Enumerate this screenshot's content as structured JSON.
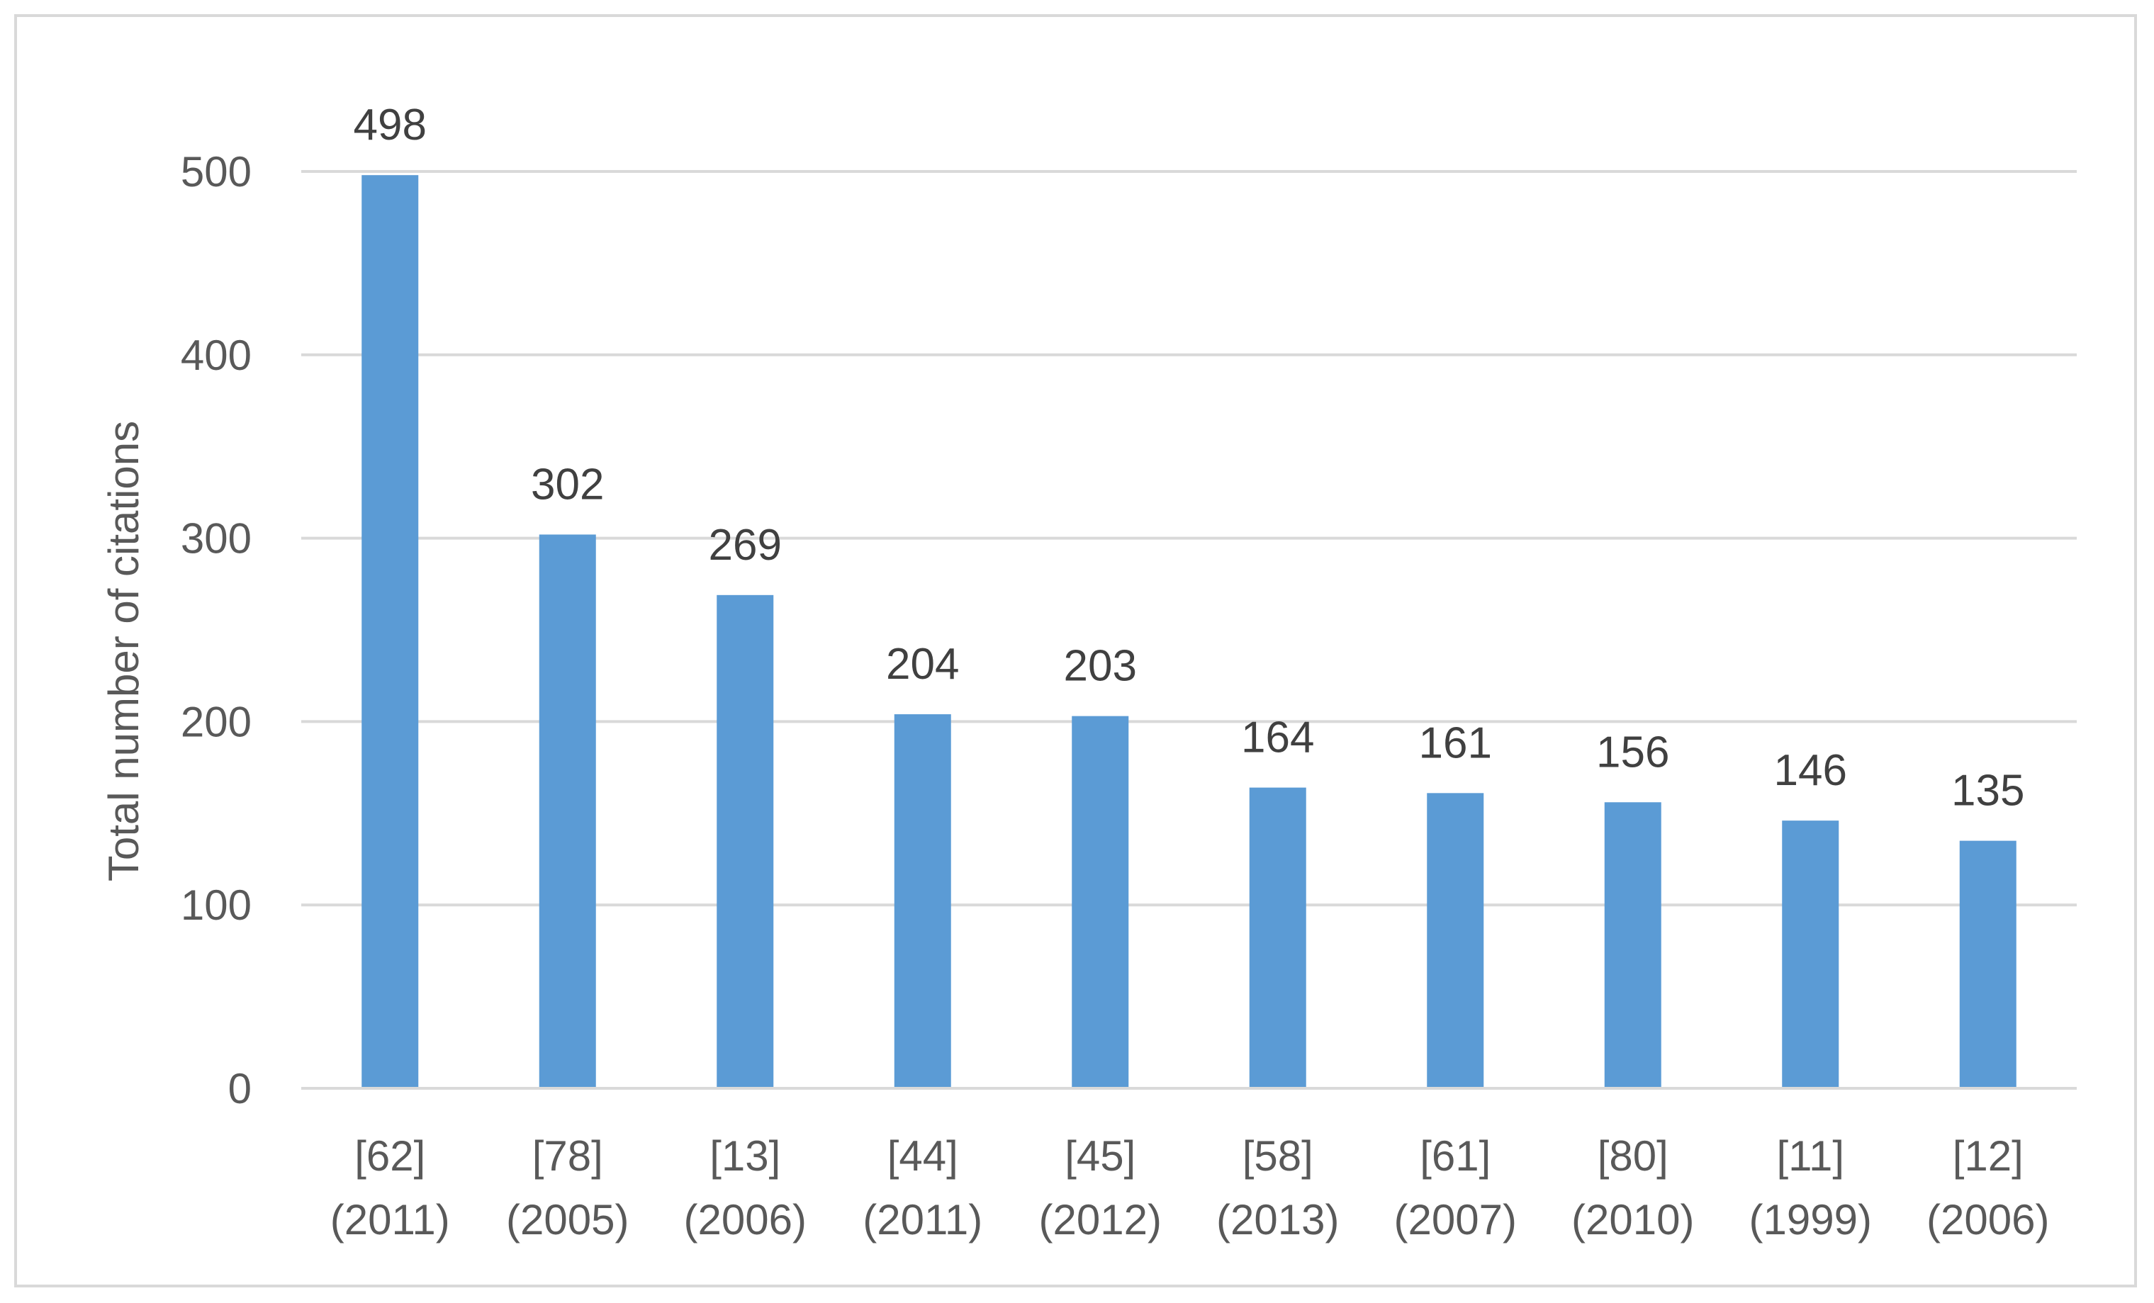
{
  "chart_data": {
    "type": "bar",
    "title": "",
    "xlabel": "",
    "ylabel": "Total number of citations",
    "ylim": [
      0,
      500
    ],
    "y_ticks": [
      0,
      100,
      200,
      300,
      400,
      500
    ],
    "grid": true,
    "legend": "none",
    "bar_color": "#5B9BD5",
    "categories": [
      {
        "ref": "[62]",
        "year": "(2011)"
      },
      {
        "ref": "[78]",
        "year": "(2005)"
      },
      {
        "ref": "[13]",
        "year": "(2006)"
      },
      {
        "ref": "[44]",
        "year": "(2011)"
      },
      {
        "ref": "[45]",
        "year": "(2012)"
      },
      {
        "ref": "[58]",
        "year": "(2013)"
      },
      {
        "ref": "[61]",
        "year": "(2007)"
      },
      {
        "ref": "[80]",
        "year": "(2010)"
      },
      {
        "ref": "[11]",
        "year": "(1999)"
      },
      {
        "ref": "[12]",
        "year": "(2006)"
      }
    ],
    "values": [
      498,
      302,
      269,
      204,
      203,
      164,
      161,
      156,
      146,
      135
    ]
  }
}
